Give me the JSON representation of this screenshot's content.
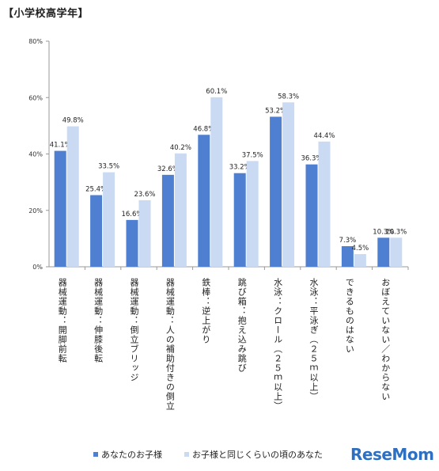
{
  "page_title": "【小学校高学年】",
  "chart_data": {
    "type": "bar",
    "title": "",
    "ylim": [
      0,
      80
    ],
    "yticks": [
      0,
      20,
      40,
      60,
      80
    ],
    "ytick_labels": [
      "0%",
      "20%",
      "40%",
      "60%",
      "80%"
    ],
    "grid": false,
    "legend": "bottom",
    "categories": [
      "器械運動：開脚前転",
      "器械運動：伸膝後転",
      "器械運動：倒立ブリッジ",
      "器械運動：人の補助付きの倒立",
      "鉄棒：逆上がり",
      "跳び箱：抱え込み跳び",
      "水泳：クロール（２５ｍ以上）",
      "水泳：平泳ぎ（２５ｍ以上）",
      "できるものはない",
      "おぼえていない／わからない"
    ],
    "series": [
      {
        "name": "あなたのお子様",
        "color": "#4f7fd0",
        "values": [
          41.1,
          25.4,
          16.6,
          32.6,
          46.8,
          33.2,
          53.2,
          36.3,
          7.3,
          10.3
        ],
        "labels": [
          "41.1%",
          "25.4%",
          "16.6%",
          "32.6%",
          "46.8%",
          "33.2%",
          "53.2%",
          "36.3%",
          "7.3%",
          "10.3%"
        ]
      },
      {
        "name": "お子様と同じくらいの頃のあなた",
        "color": "#c9daf2",
        "values": [
          49.8,
          33.5,
          23.6,
          40.2,
          60.1,
          37.5,
          58.3,
          44.4,
          4.5,
          10.3
        ],
        "labels": [
          "49.8%",
          "33.5%",
          "23.6%",
          "40.2%",
          "60.1%",
          "37.5%",
          "58.3%",
          "44.4%",
          "4.5%",
          "10.3%"
        ]
      }
    ]
  },
  "legend": {
    "series1_label": "あなたのお子様",
    "series2_label": "お子様と同じくらいの頃のあなた"
  },
  "logo": {
    "text": "ReseMom"
  }
}
